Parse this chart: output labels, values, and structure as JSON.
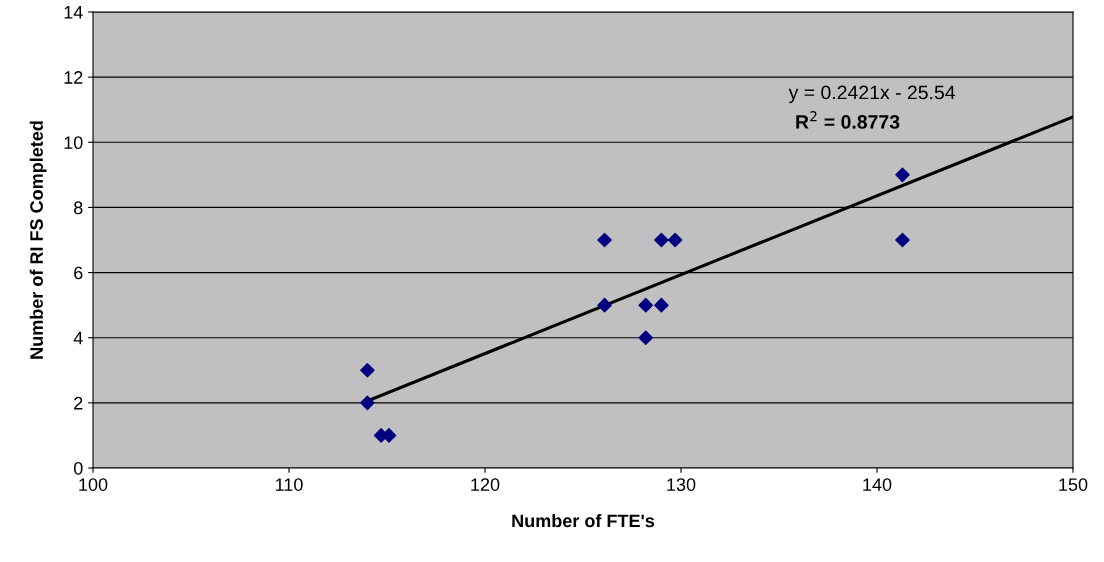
{
  "chart_data": {
    "type": "scatter",
    "xlabel": "Number of FTE's",
    "ylabel": "Number of RI FS Completed",
    "xlim": [
      100,
      150
    ],
    "xticks": [
      100,
      110,
      120,
      130,
      140,
      150
    ],
    "ylim": [
      0,
      14
    ],
    "yticks": [
      0,
      2,
      4,
      6,
      8,
      10,
      12,
      14
    ],
    "grid": "y",
    "legend": false,
    "marker": "diamond",
    "series": [
      {
        "color": "#000080",
        "x": [
          114.0,
          114.0,
          114.7,
          115.1,
          126.1,
          126.1,
          128.2,
          128.2,
          129.0,
          129.0,
          129.7,
          141.3,
          141.3
        ],
        "values": [
          3,
          2,
          1,
          1,
          7,
          5,
          5,
          4,
          7,
          5,
          7,
          9,
          7
        ]
      },
      {
        "type": "line",
        "color": "#000000",
        "x": [
          114.0,
          150
        ],
        "values": [
          2.06,
          10.78
        ],
        "line_style": "solid",
        "marker": "none"
      }
    ],
    "annotations": [
      "y = 0.2421x - 25.54",
      "R$^{2}$ = 0.8773"
    ]
  }
}
